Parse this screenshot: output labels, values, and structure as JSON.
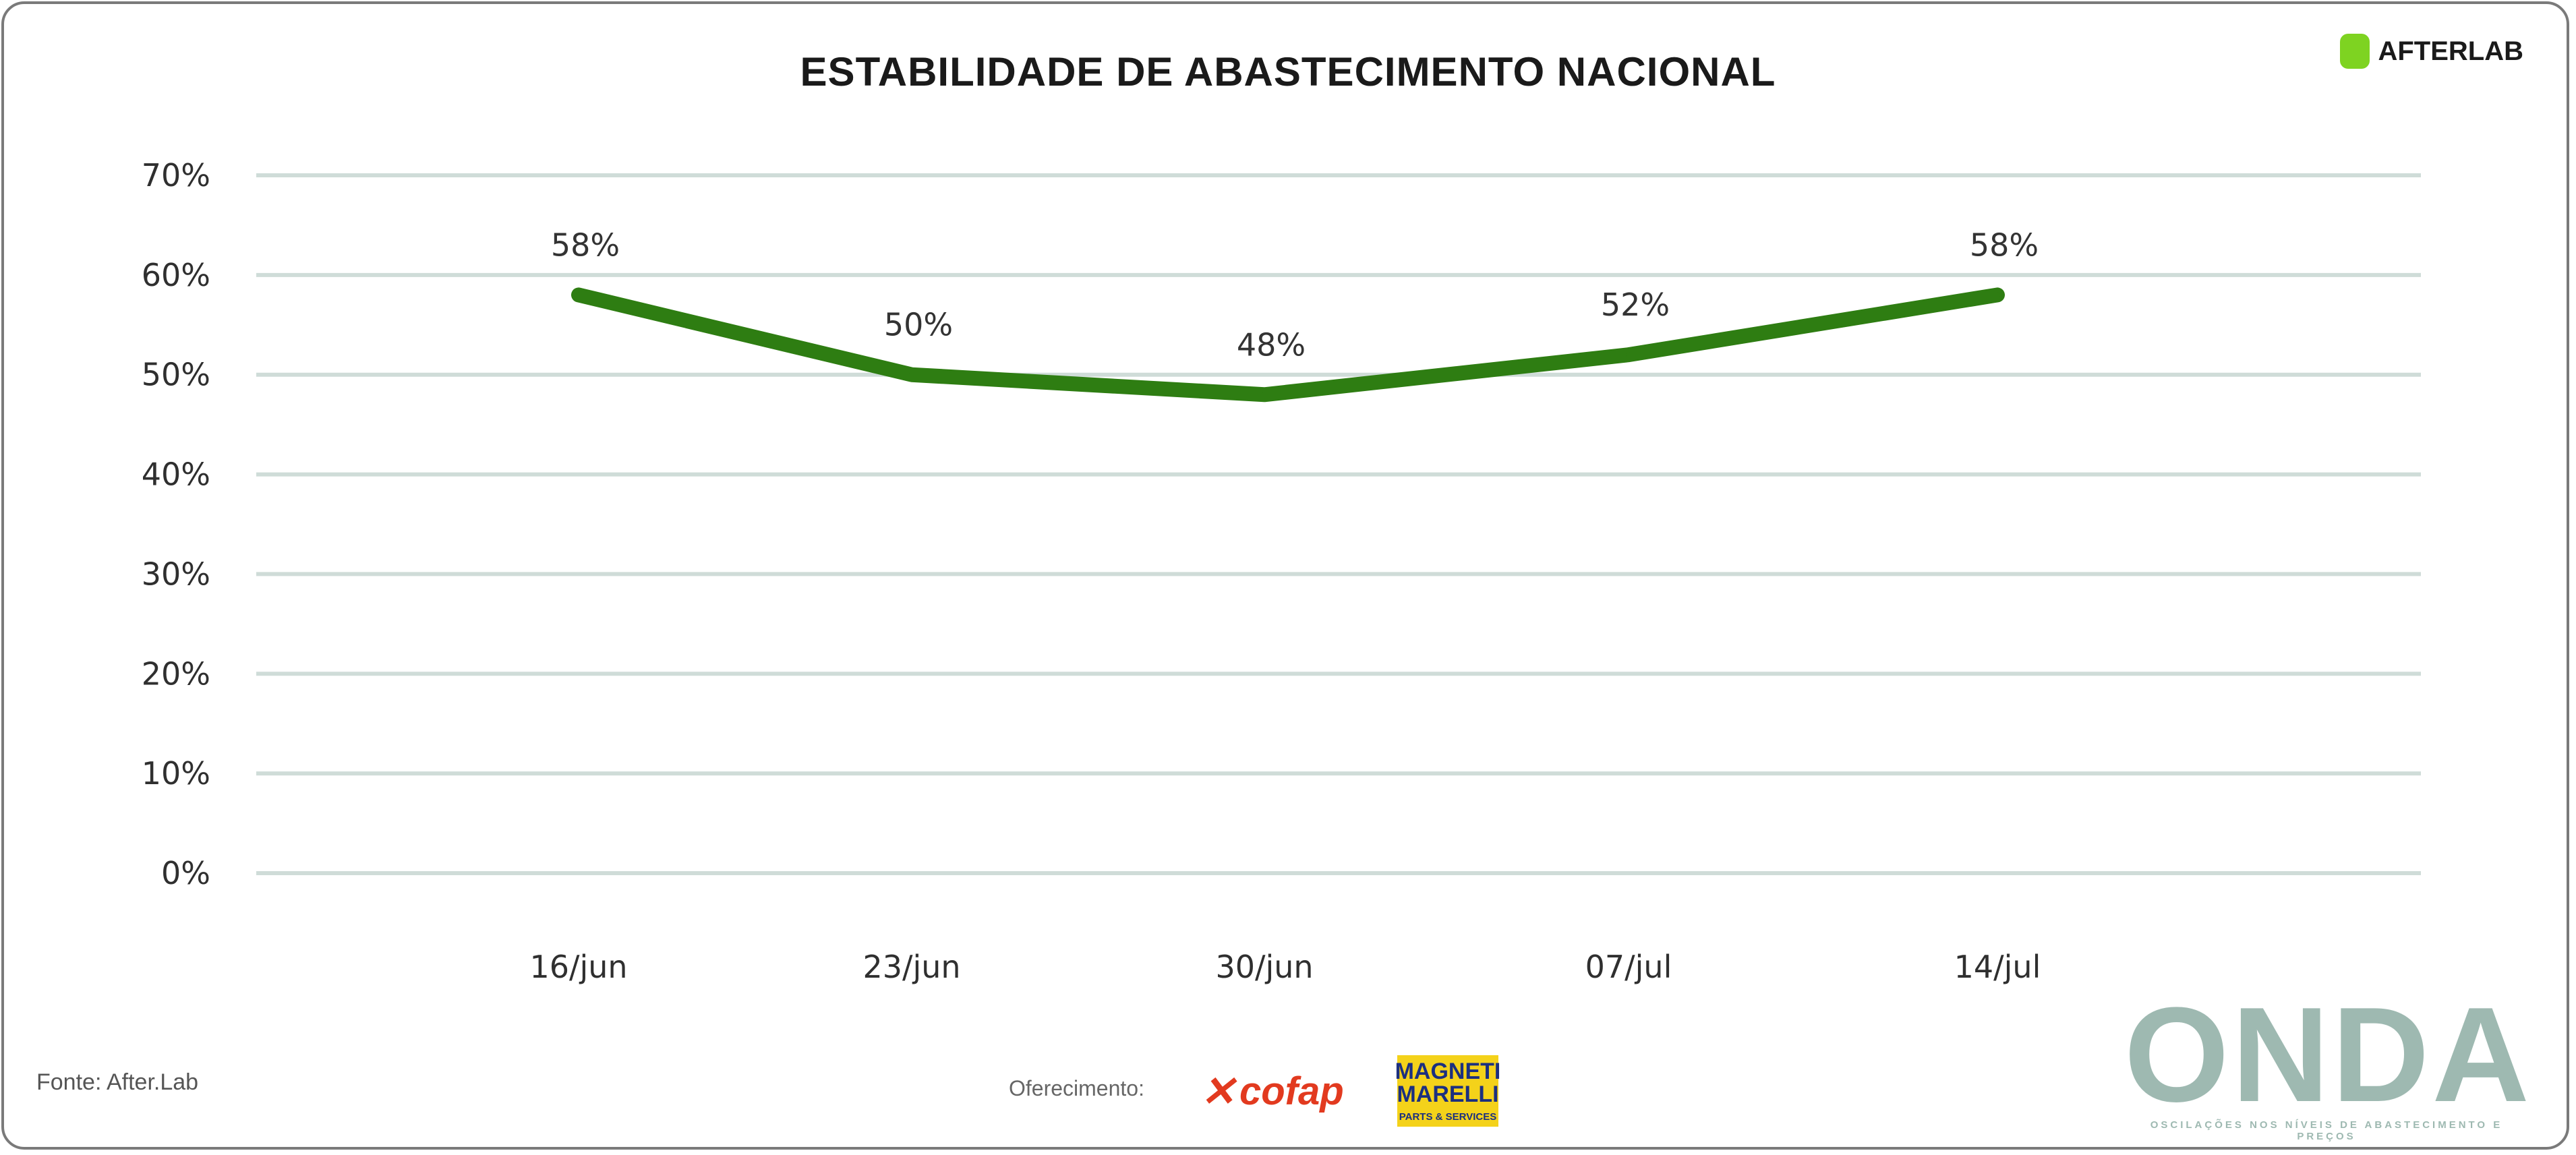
{
  "title": "ESTABILIDADE DE ABASTECIMENTO NACIONAL",
  "brand": {
    "name": "AFTERLAB",
    "icon": "afterlab-logo-icon",
    "color": "#7ed321"
  },
  "source": "Fonte: After.Lab",
  "sponsors": {
    "label": "Oferecimento:",
    "cofap": "cofap",
    "magneti_marelli": {
      "top": "MAGNETI MARELLI",
      "bottom": "PARTS & SERVICES"
    }
  },
  "onda": {
    "word": "ONDA",
    "tagline": "OSCILAÇÕES NOS NÍVEIS DE ABASTECIMENTO E PREÇOS"
  },
  "chart_data": {
    "type": "line",
    "title": "ESTABILIDADE DE ABASTECIMENTO NACIONAL",
    "categories": [
      "16/jun",
      "23/jun",
      "30/jun",
      "07/jul",
      "14/jul"
    ],
    "series": [
      {
        "values": [
          58,
          50,
          48,
          52,
          58
        ],
        "labels": [
          "58%",
          "50%",
          "48%",
          "52%",
          "58%"
        ],
        "color": "#2e7d12"
      }
    ],
    "ylim": [
      0,
      70
    ],
    "yticks": [
      "0%",
      "10%",
      "20%",
      "30%",
      "40%",
      "50%",
      "60%",
      "70%"
    ],
    "grid": true,
    "grid_color": "#cfdcd8",
    "legend": "none"
  }
}
